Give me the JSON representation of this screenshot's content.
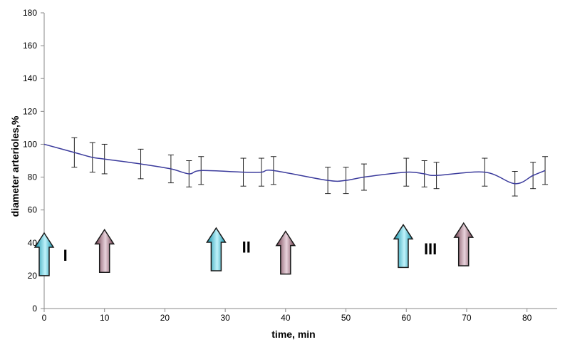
{
  "chart_data": {
    "type": "line",
    "title": "",
    "xlabel": "time, min",
    "ylabel": "diameter arterioles,%",
    "xlim": [
      0,
      85
    ],
    "ylim": [
      0,
      180
    ],
    "x_ticks": [
      0,
      10,
      20,
      30,
      40,
      50,
      60,
      70,
      80
    ],
    "y_ticks": [
      0,
      20,
      40,
      60,
      80,
      100,
      120,
      140,
      160,
      180
    ],
    "grid": false,
    "legend": "none",
    "line_color": "#3b3b9c",
    "series": [
      {
        "x": [
          0,
          5,
          8,
          10,
          16,
          21,
          24,
          26,
          33,
          36,
          38,
          47,
          50,
          53,
          60,
          63,
          65,
          73,
          78,
          81,
          83
        ],
        "y": [
          100,
          95,
          92,
          91,
          88,
          85,
          82,
          84,
          83,
          83,
          84,
          78,
          78,
          80,
          83,
          82,
          81,
          83,
          76,
          81,
          84
        ],
        "err": [
          0,
          9,
          9,
          9,
          9,
          8.5,
          8,
          8.5,
          8.5,
          8.5,
          8.5,
          8,
          8,
          8,
          8.5,
          8,
          8,
          8.5,
          7.5,
          8,
          8.5
        ]
      }
    ],
    "stage_labels": [
      {
        "text": "I",
        "x": 3.5,
        "y": 29
      },
      {
        "text": "II",
        "x": 33.5,
        "y": 34
      },
      {
        "text": "III",
        "x": 64,
        "y": 33
      }
    ],
    "arrows": [
      {
        "kind": "cyan",
        "x": 0,
        "y_from": 20,
        "y_to": 46
      },
      {
        "kind": "mauve",
        "x": 10,
        "y_from": 22,
        "y_to": 48
      },
      {
        "kind": "cyan",
        "x": 28.5,
        "y_from": 23,
        "y_to": 49
      },
      {
        "kind": "mauve",
        "x": 40,
        "y_from": 21,
        "y_to": 47
      },
      {
        "kind": "cyan",
        "x": 59.5,
        "y_from": 25,
        "y_to": 51
      },
      {
        "kind": "mauve",
        "x": 69.5,
        "y_from": 26,
        "y_to": 52
      }
    ],
    "arrow_colors": {
      "cyan": [
        "#0f8fa6",
        "#bff2fb"
      ],
      "mauve": [
        "#6b3848",
        "#e8d3dc"
      ]
    }
  }
}
